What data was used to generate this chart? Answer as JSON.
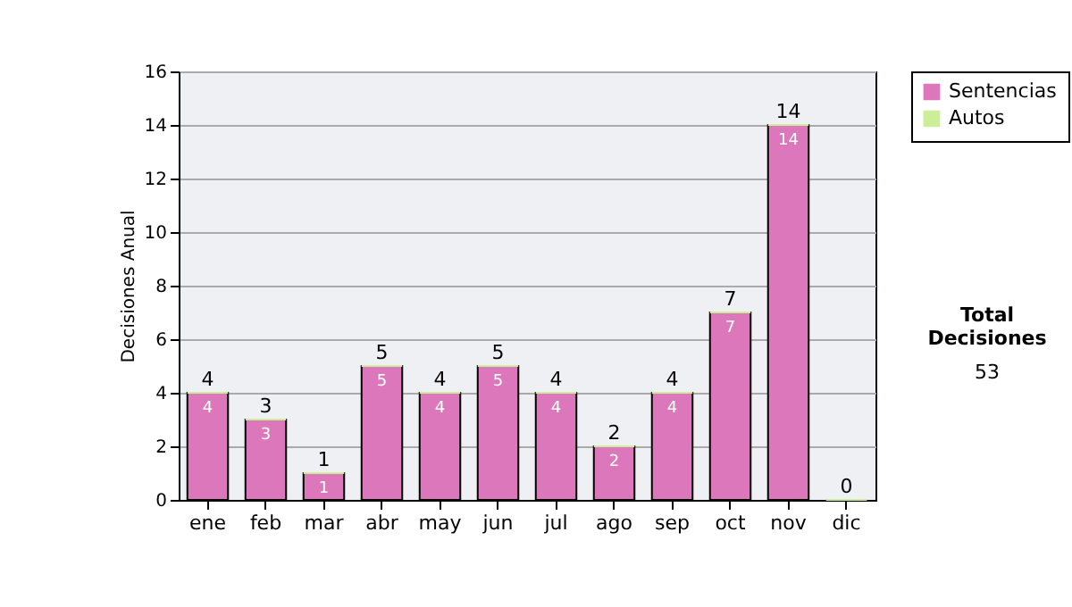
{
  "chart_data": {
    "type": "bar",
    "ylabel": "Decisiones Anual",
    "categories": [
      "ene",
      "feb",
      "mar",
      "abr",
      "may",
      "jun",
      "jul",
      "ago",
      "sep",
      "oct",
      "nov",
      "dic"
    ],
    "series": [
      {
        "name": "Sentencias",
        "color": "#dd77bb",
        "values": [
          4,
          3,
          1,
          5,
          4,
          5,
          4,
          2,
          4,
          7,
          14,
          0
        ],
        "value_labels": [
          "4",
          "3",
          "1",
          "5",
          "4",
          "5",
          "4",
          "2",
          "4",
          "7",
          "14",
          null
        ]
      },
      {
        "name": "Autos",
        "color": "#ccee99",
        "values": [
          0,
          0,
          0,
          0,
          0,
          0,
          0,
          0,
          0,
          0,
          0,
          0
        ]
      }
    ],
    "stacked": true,
    "totals": [
      "4",
      "3",
      "1",
      "5",
      "4",
      "5",
      "4",
      "2",
      "4",
      "7",
      "14",
      "0"
    ],
    "ylim": [
      0,
      16
    ],
    "yticks": [
      0,
      2,
      4,
      6,
      8,
      10,
      12,
      14,
      16
    ],
    "grid": "y",
    "legend": "right",
    "annotations": [
      "Total Decisiones",
      "53"
    ]
  }
}
